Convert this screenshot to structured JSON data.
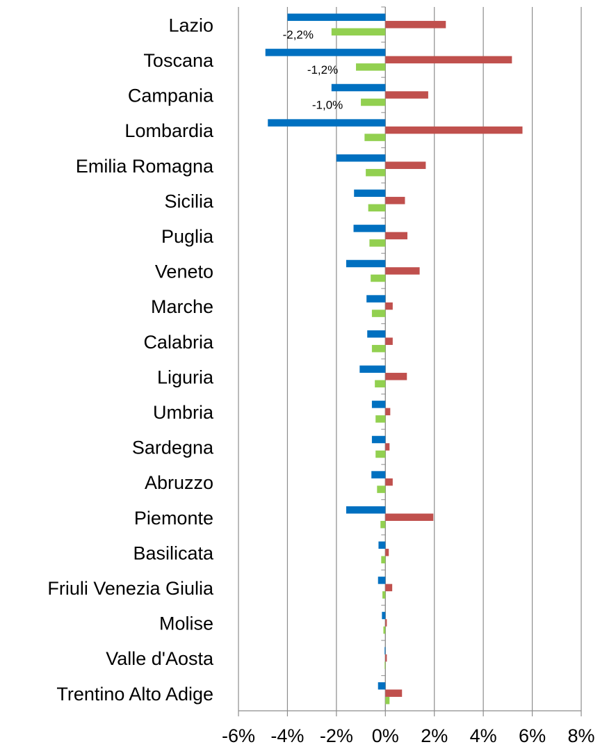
{
  "chart_data": {
    "type": "barh",
    "categories": [
      "Lazio",
      "Toscana",
      "Campania",
      "Lombardia",
      "Emilia Romagna",
      "Sicilia",
      "Puglia",
      "Veneto",
      "Marche",
      "Calabria",
      "Liguria",
      "Umbria",
      "Sardegna",
      "Abruzzo",
      "Piemonte",
      "Basilicata",
      "Friuli Venezia Giulia",
      "Molise",
      "Valle d'Aosta",
      "Trentino Alto Adige"
    ],
    "series": [
      {
        "color": "#0070c0",
        "values": [
          -4.0,
          -4.9,
          -2.2,
          -4.8,
          -2.0,
          -1.28,
          -1.3,
          -1.6,
          -0.77,
          -0.74,
          -1.05,
          -0.55,
          -0.55,
          -0.57,
          -1.6,
          -0.28,
          -0.3,
          -0.14,
          -0.03,
          -0.3
        ]
      },
      {
        "color": "#c0504d",
        "values": [
          2.47,
          5.17,
          1.75,
          5.6,
          1.65,
          0.8,
          0.9,
          1.4,
          0.3,
          0.3,
          0.88,
          0.2,
          0.17,
          0.3,
          1.96,
          0.14,
          0.28,
          0.06,
          0.06,
          0.68
        ]
      },
      {
        "color": "#92d050",
        "values": [
          -2.2,
          -1.2,
          -1.0,
          -0.85,
          -0.8,
          -0.7,
          -0.65,
          -0.6,
          -0.55,
          -0.55,
          -0.43,
          -0.4,
          -0.4,
          -0.34,
          -0.2,
          -0.17,
          -0.12,
          -0.08,
          -0.03,
          0.17
        ],
        "value_labels": [
          "-2,2%",
          "-1,2%",
          "-1,0%",
          null,
          null,
          null,
          null,
          null,
          null,
          null,
          null,
          null,
          null,
          null,
          null,
          null,
          null,
          null,
          null,
          null
        ]
      }
    ],
    "xlim": [
      -6,
      8
    ],
    "xticks": [
      {
        "value": -6,
        "label": "-6%"
      },
      {
        "value": -4,
        "label": "-4%"
      },
      {
        "value": -2,
        "label": "-2%"
      },
      {
        "value": 0,
        "label": "0%"
      },
      {
        "value": 2,
        "label": "2%"
      },
      {
        "value": 4,
        "label": "4%"
      },
      {
        "value": 6,
        "label": "6%"
      },
      {
        "value": 8,
        "label": "8%"
      }
    ],
    "grid": true
  }
}
